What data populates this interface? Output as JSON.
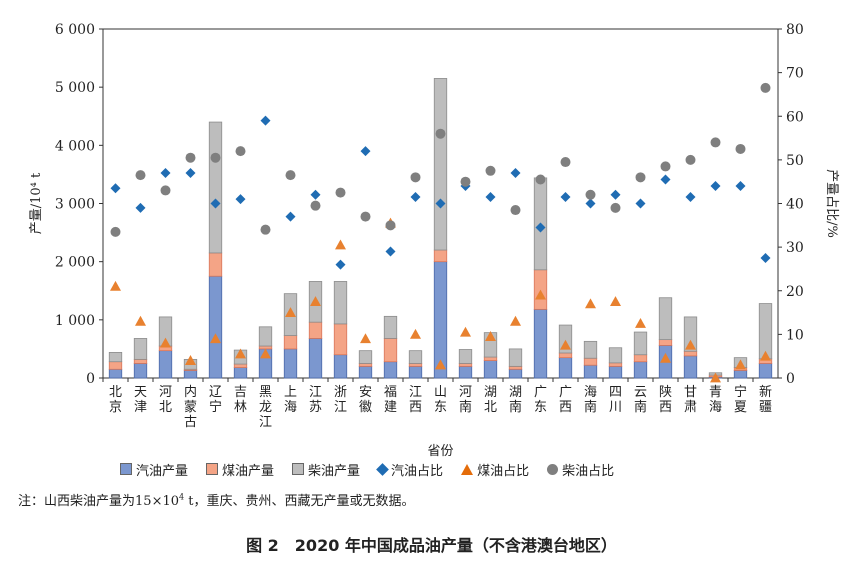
{
  "chart_data": {
    "type": "bar",
    "stacked": true,
    "categories": [
      "北京",
      "天津",
      "河北",
      "内蒙古",
      "辽宁",
      "吉林",
      "黑龙江",
      "上海",
      "江苏",
      "浙江",
      "安徽",
      "福建",
      "江西",
      "山东",
      "河南",
      "湖北",
      "湖南",
      "广东",
      "广西",
      "海南",
      "四川",
      "云南",
      "陕西",
      "甘肃",
      "青海",
      "宁夏",
      "新疆"
    ],
    "xlabel": "省份",
    "ylabel": "产量/10⁴ t",
    "y2label": "产量占比/%",
    "ylim": [
      0,
      6000
    ],
    "y2lim": [
      0,
      80
    ],
    "yticks": [
      "0",
      "1 000",
      "2 000",
      "3 000",
      "4 000",
      "5 000",
      "6 000"
    ],
    "y2ticks": [
      "0",
      "10",
      "20",
      "30",
      "40",
      "50",
      "60",
      "70",
      "80"
    ],
    "colors": {
      "gasoline_bar": "#7b97cf",
      "kerosene_bar": "#f4a486",
      "diesel_bar": "#bdbdbd",
      "gasoline_ratio": "#1f6cb3",
      "kerosene_ratio": "#e8812f",
      "diesel_ratio": "#7f7f7f"
    },
    "series": [
      {
        "name": "汽油产量",
        "kind": "bar",
        "values": [
          150,
          250,
          470,
          130,
          1750,
          180,
          500,
          500,
          680,
          400,
          200,
          280,
          200,
          2000,
          200,
          300,
          150,
          1180,
          350,
          220,
          200,
          280,
          560,
          380,
          20,
          130,
          250
        ]
      },
      {
        "name": "煤油产量",
        "kind": "bar",
        "values": [
          130,
          70,
          80,
          20,
          400,
          60,
          50,
          230,
          280,
          530,
          50,
          400,
          50,
          200,
          50,
          60,
          50,
          680,
          80,
          120,
          60,
          120,
          100,
          80,
          30,
          50,
          80
        ]
      },
      {
        "name": "柴油产量",
        "kind": "bar",
        "values": [
          160,
          360,
          500,
          170,
          2250,
          240,
          330,
          720,
          700,
          730,
          220,
          380,
          220,
          2950,
          240,
          420,
          300,
          1580,
          480,
          290,
          260,
          390,
          720,
          590,
          40,
          170,
          950
        ]
      },
      {
        "name": "汽油占比",
        "kind": "diamond",
        "axis": "right",
        "values": [
          43.5,
          39,
          47,
          47,
          40,
          41,
          59,
          37,
          42,
          26,
          52,
          29,
          41.5,
          40,
          44,
          41.5,
          47,
          34.5,
          41.5,
          40,
          42,
          40,
          45.5,
          41.5,
          44,
          44,
          27.5
        ]
      },
      {
        "name": "煤油占比",
        "kind": "triangle",
        "axis": "right",
        "values": [
          21,
          13,
          8,
          4,
          9,
          5.5,
          5.5,
          15,
          17.5,
          30.5,
          9,
          35.5,
          10,
          3,
          10.5,
          9.5,
          13,
          19,
          7.5,
          17,
          17.5,
          12.5,
          4.5,
          7.5,
          0,
          3,
          5
        ]
      },
      {
        "name": "柴油占比",
        "kind": "circle",
        "axis": "right",
        "values": [
          33.5,
          46.5,
          43,
          50.5,
          50.5,
          52,
          34,
          46.5,
          39.5,
          42.5,
          37,
          35,
          46,
          56,
          45,
          47.5,
          38.5,
          45.5,
          49.5,
          42,
          39,
          46,
          48.5,
          50,
          54,
          52.5,
          66.5
        ]
      }
    ]
  },
  "legend": [
    "汽油产量",
    "煤油产量",
    "柴油产量",
    "汽油占比",
    "煤油占比",
    "柴油占比"
  ],
  "note": {
    "prefix": "注：山西柴油产量为",
    "value": "15",
    "times": "×",
    "base": "10",
    "exp": "4",
    "suffix": " t，重庆、贵州、西藏无产量或无数据。"
  },
  "caption": "图 2　2020 年中国成品油产量（不含港澳台地区）"
}
